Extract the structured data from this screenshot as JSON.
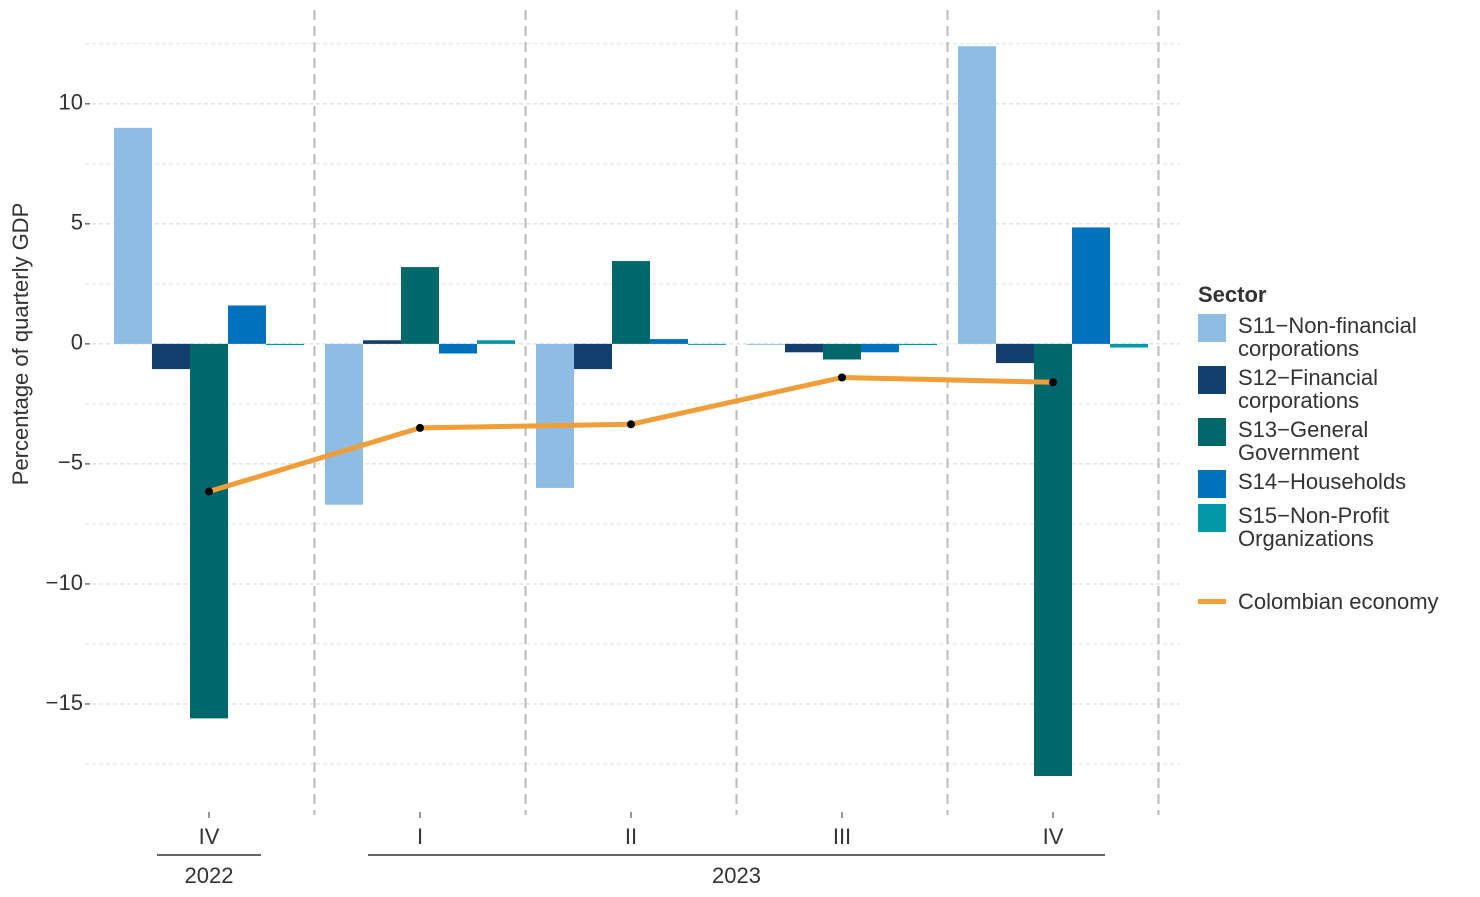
{
  "chart_data": {
    "type": "bar_line",
    "y_label": "Percentage of quarterly GDP",
    "categories": [
      "IV",
      "I",
      "II",
      "III",
      "IV"
    ],
    "x_groups": [
      {
        "label": "2022",
        "count": 1
      },
      {
        "label": "2023",
        "count": 4
      }
    ],
    "legend_title": "Sector",
    "series": [
      {
        "name": "S11−Non-financial corporations",
        "color": "#8fbce3",
        "values": [
          9.0,
          -6.7,
          -6.0,
          -0.03,
          12.4
        ]
      },
      {
        "name": "S12−Financial corporations",
        "color": "#123f6e",
        "values": [
          -1.05,
          0.15,
          -1.05,
          -0.35,
          -0.8
        ]
      },
      {
        "name": "S13−General Government",
        "color": "#00686a",
        "values": [
          -15.6,
          3.2,
          3.45,
          -0.65,
          -18.0
        ]
      },
      {
        "name": "S14−Households",
        "color": "#0071bc",
        "values": [
          1.6,
          -0.4,
          0.2,
          -0.35,
          4.85
        ]
      },
      {
        "name": "S15−Non-Profit Organizations",
        "color": "#0097a7",
        "values": [
          -0.05,
          0.15,
          -0.03,
          -0.05,
          -0.15
        ]
      }
    ],
    "line": {
      "name": "Colombian economy",
      "color": "#f09e3a",
      "values": [
        -6.15,
        -3.5,
        -3.35,
        -1.4,
        -1.6
      ]
    },
    "ylim": [
      -19.5,
      13.7
    ],
    "yticks": [
      {
        "value": -15,
        "label": "−15"
      },
      {
        "value": -10,
        "label": "−10"
      },
      {
        "value": -5,
        "label": "−5"
      },
      0,
      5,
      10
    ],
    "yminor": [
      -17.5,
      -12.5,
      -7.5,
      -2.5,
      2.5,
      7.5,
      12.5
    ],
    "grid": true
  }
}
